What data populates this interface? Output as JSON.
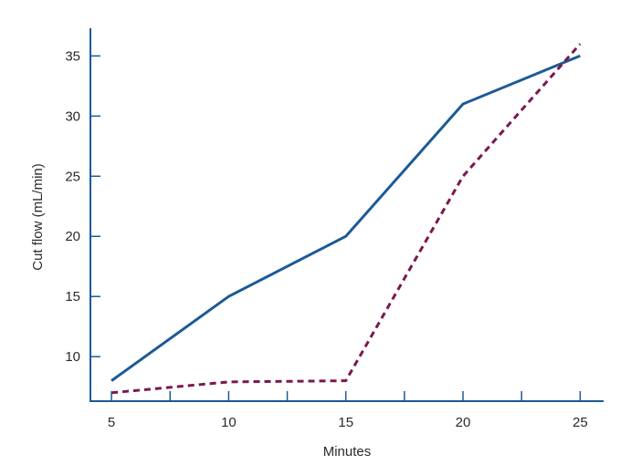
{
  "chart_data": {
    "type": "line",
    "title": "",
    "xlabel": "Minutes",
    "ylabel": "Cut flow (mL/min)",
    "xlim": [
      4.1,
      26
    ],
    "ylim": [
      6.3,
      37.3
    ],
    "x_ticks": [
      5,
      10,
      15,
      20,
      25
    ],
    "x_minor_ticks": [
      7.5,
      12.5,
      17.5,
      22.5
    ],
    "y_ticks": [
      10,
      15,
      20,
      25,
      30,
      35
    ],
    "grid": false,
    "legend": "none",
    "series": [
      {
        "style": "solid",
        "color": "#1b5a96",
        "x": [
          5,
          10,
          15,
          20,
          25
        ],
        "values": [
          8,
          15,
          20,
          31,
          35
        ]
      },
      {
        "style": "dashed",
        "color": "#7a1850",
        "x": [
          5,
          10,
          15,
          20,
          25
        ],
        "values": [
          7,
          7.9,
          8,
          25,
          36
        ]
      }
    ],
    "axis_color": "#1b5a96"
  }
}
